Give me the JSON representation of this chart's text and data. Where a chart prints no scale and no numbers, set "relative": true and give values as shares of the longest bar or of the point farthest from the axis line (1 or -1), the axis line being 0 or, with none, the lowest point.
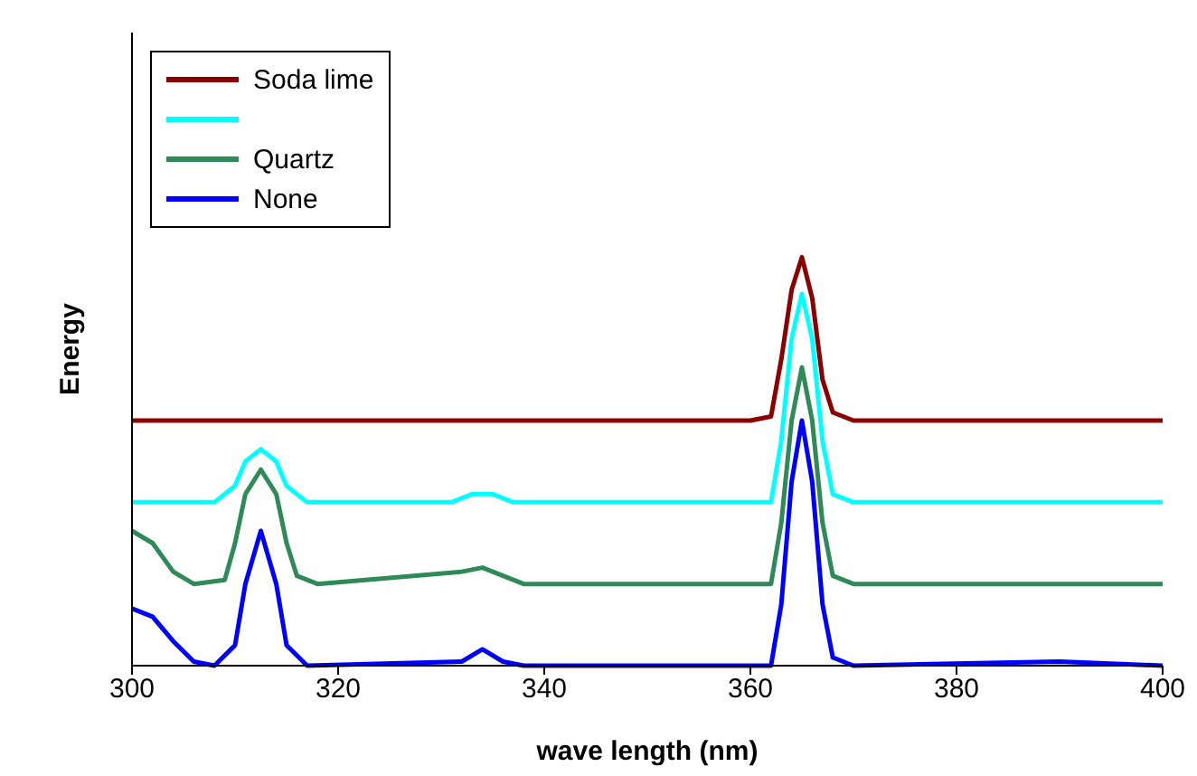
{
  "chart_data": {
    "type": "line",
    "xlabel": "wave length (nm)",
    "ylabel": "Energy",
    "relative": true,
    "xlim": [
      300,
      400
    ],
    "xticks": [
      300,
      320,
      340,
      360,
      380,
      400
    ],
    "legend": "top left",
    "marker": "none",
    "line_style": "solid",
    "series": [
      {
        "name": "Soda lime",
        "color": "#8b0000",
        "x": [
          300,
          360,
          362,
          363,
          364,
          365,
          366,
          367,
          368,
          370,
          400
        ],
        "values": [
          0.6,
          0.6,
          0.61,
          0.75,
          0.92,
          1,
          0.9,
          0.7,
          0.62,
          0.6,
          0.6
        ]
      },
      {
        "color": "#00ffff",
        "x": [
          300,
          308,
          310,
          311,
          312.5,
          314,
          315,
          317,
          331,
          333,
          335,
          337,
          362,
          363,
          364,
          365,
          366,
          367,
          368,
          370,
          400
        ],
        "values": [
          0.4,
          0.4,
          0.44,
          0.5,
          0.53,
          0.5,
          0.44,
          0.4,
          0.4,
          0.42,
          0.42,
          0.4,
          0.4,
          0.55,
          0.8,
          0.91,
          0.8,
          0.55,
          0.42,
          0.4,
          0.4
        ]
      },
      {
        "name": "Quartz",
        "color": "#2e8b57",
        "x": [
          300,
          302,
          304,
          306,
          309,
          310,
          311,
          312.5,
          314,
          315,
          316,
          318,
          332,
          334,
          336,
          338,
          362,
          363,
          364,
          365,
          366,
          367,
          368,
          370,
          400
        ],
        "values": [
          0.33,
          0.3,
          0.23,
          0.2,
          0.21,
          0.3,
          0.42,
          0.48,
          0.42,
          0.3,
          0.22,
          0.2,
          0.23,
          0.24,
          0.22,
          0.2,
          0.2,
          0.35,
          0.6,
          0.73,
          0.6,
          0.35,
          0.22,
          0.2,
          0.2
        ]
      },
      {
        "name": "None",
        "color": "#0000ff",
        "x": [
          300,
          302,
          304,
          306,
          308,
          310,
          311,
          312.5,
          314,
          315,
          317,
          332,
          334,
          336,
          338,
          362,
          363,
          364,
          365,
          366,
          367,
          368,
          370,
          390,
          400
        ],
        "values": [
          0.14,
          0.12,
          0.06,
          0.01,
          0,
          0.05,
          0.2,
          0.33,
          0.2,
          0.05,
          0,
          0.01,
          0.04,
          0.01,
          0,
          0,
          0.15,
          0.45,
          0.6,
          0.45,
          0.15,
          0.02,
          0,
          0.01,
          0
        ]
      }
    ]
  }
}
